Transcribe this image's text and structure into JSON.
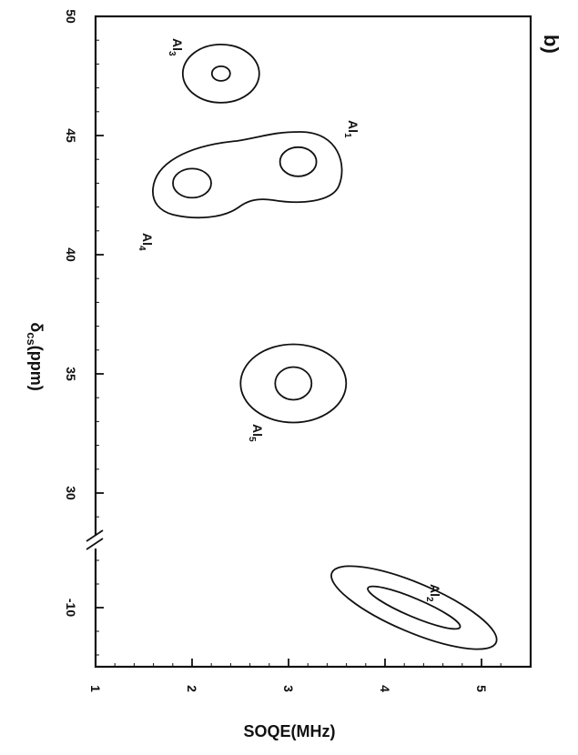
{
  "chart_data": {
    "type": "contour",
    "panel_label": "b)",
    "xlabel": "SOQE(MHz)",
    "ylabel": "δcs(ppm)",
    "ylabel_main": "δ",
    "ylabel_sub": "cs",
    "ylabel_unit": "(ppm)",
    "xlim": [
      1,
      5
    ],
    "x_ticks": [
      {
        "value": 1,
        "label": "1"
      },
      {
        "value": 2,
        "label": "2"
      },
      {
        "value": 3,
        "label": "3"
      },
      {
        "value": 4,
        "label": "4"
      },
      {
        "value": 5,
        "label": "5"
      }
    ],
    "y_ticks": [
      {
        "value": 50,
        "label": "50"
      },
      {
        "value": 45,
        "label": "45"
      },
      {
        "value": 40,
        "label": "40"
      },
      {
        "value": 35,
        "label": "35"
      },
      {
        "value": 30,
        "label": "30"
      },
      {
        "value": -10,
        "label": "-10"
      }
    ],
    "y_axis_break": true,
    "peaks": [
      {
        "name": "Al3",
        "label_main": "Al",
        "label_sub": "3",
        "soqe": 2.3,
        "delta_cs": 47.6
      },
      {
        "name": "Al1",
        "label_main": "Al",
        "label_sub": "1",
        "soqe": 3.1,
        "delta_cs": 43.9
      },
      {
        "name": "Al4",
        "label_main": "Al",
        "label_sub": "4",
        "soqe": 2.0,
        "delta_cs": 43.0
      },
      {
        "name": "Al5",
        "label_main": "Al",
        "label_sub": "5",
        "soqe": 3.05,
        "delta_cs": 34.6
      },
      {
        "name": "Al2",
        "label_main": "Al",
        "label_sub": "2",
        "soqe": 4.3,
        "delta_cs": -10.0
      }
    ]
  }
}
